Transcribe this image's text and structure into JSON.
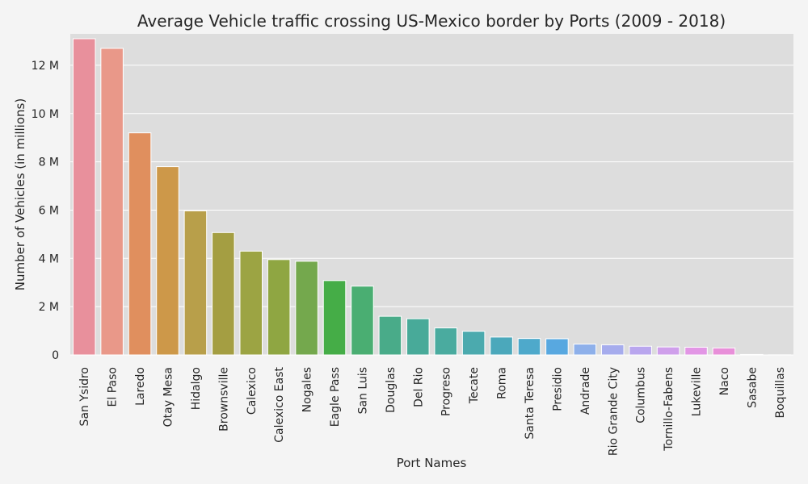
{
  "chart_data": {
    "type": "bar",
    "title": "Average Vehicle traffic crossing US-Mexico border by Ports (2009 - 2018)",
    "xlabel": "Port Names",
    "ylabel": "Number of Vehicles (in millions)",
    "ylim": [
      0,
      13.3
    ],
    "yticks": [
      0,
      2,
      4,
      6,
      8,
      10,
      12
    ],
    "ytick_labels": [
      "0",
      "2 M",
      "4 M",
      "6 M",
      "8 M",
      "10 M",
      "12 M"
    ],
    "grid": true,
    "categories": [
      "San Ysidro",
      "El Paso",
      "Laredo",
      "Otay Mesa",
      "Hidalgo",
      "Brownsville",
      "Calexico",
      "Calexico East",
      "Nogales",
      "Eagle Pass",
      "San Luis",
      "Douglas",
      "Del Rio",
      "Progreso",
      "Tecate",
      "Roma",
      "Santa Teresa",
      "Presidio",
      "Andrade",
      "Rio Grande City",
      "Columbus",
      "Tornillo-Fabens",
      "Lukeville",
      "Naco",
      "Sasabe",
      "Boquillas"
    ],
    "values": [
      13.1,
      12.7,
      9.2,
      7.8,
      5.97,
      5.07,
      4.3,
      3.95,
      3.88,
      3.08,
      2.85,
      1.6,
      1.5,
      1.12,
      0.98,
      0.74,
      0.68,
      0.67,
      0.45,
      0.42,
      0.36,
      0.33,
      0.32,
      0.29,
      0.02,
      0.005
    ],
    "colors": [
      "#e8909c",
      "#e99889",
      "#e08f5e",
      "#cd9849",
      "#b89f4a",
      "#a49e42",
      "#9ca443",
      "#8fa642",
      "#74a84d",
      "#45ad47",
      "#4aae72",
      "#49ab89",
      "#48aa99",
      "#4aab9f",
      "#4baaae",
      "#4ba8bb",
      "#4ea9cb",
      "#58a8e0",
      "#8eb0ea",
      "#a6aced",
      "#b9a6ee",
      "#cf9feb",
      "#e296e5",
      "#e88fd9",
      "#ea8fc3",
      "#e98eb3"
    ]
  }
}
